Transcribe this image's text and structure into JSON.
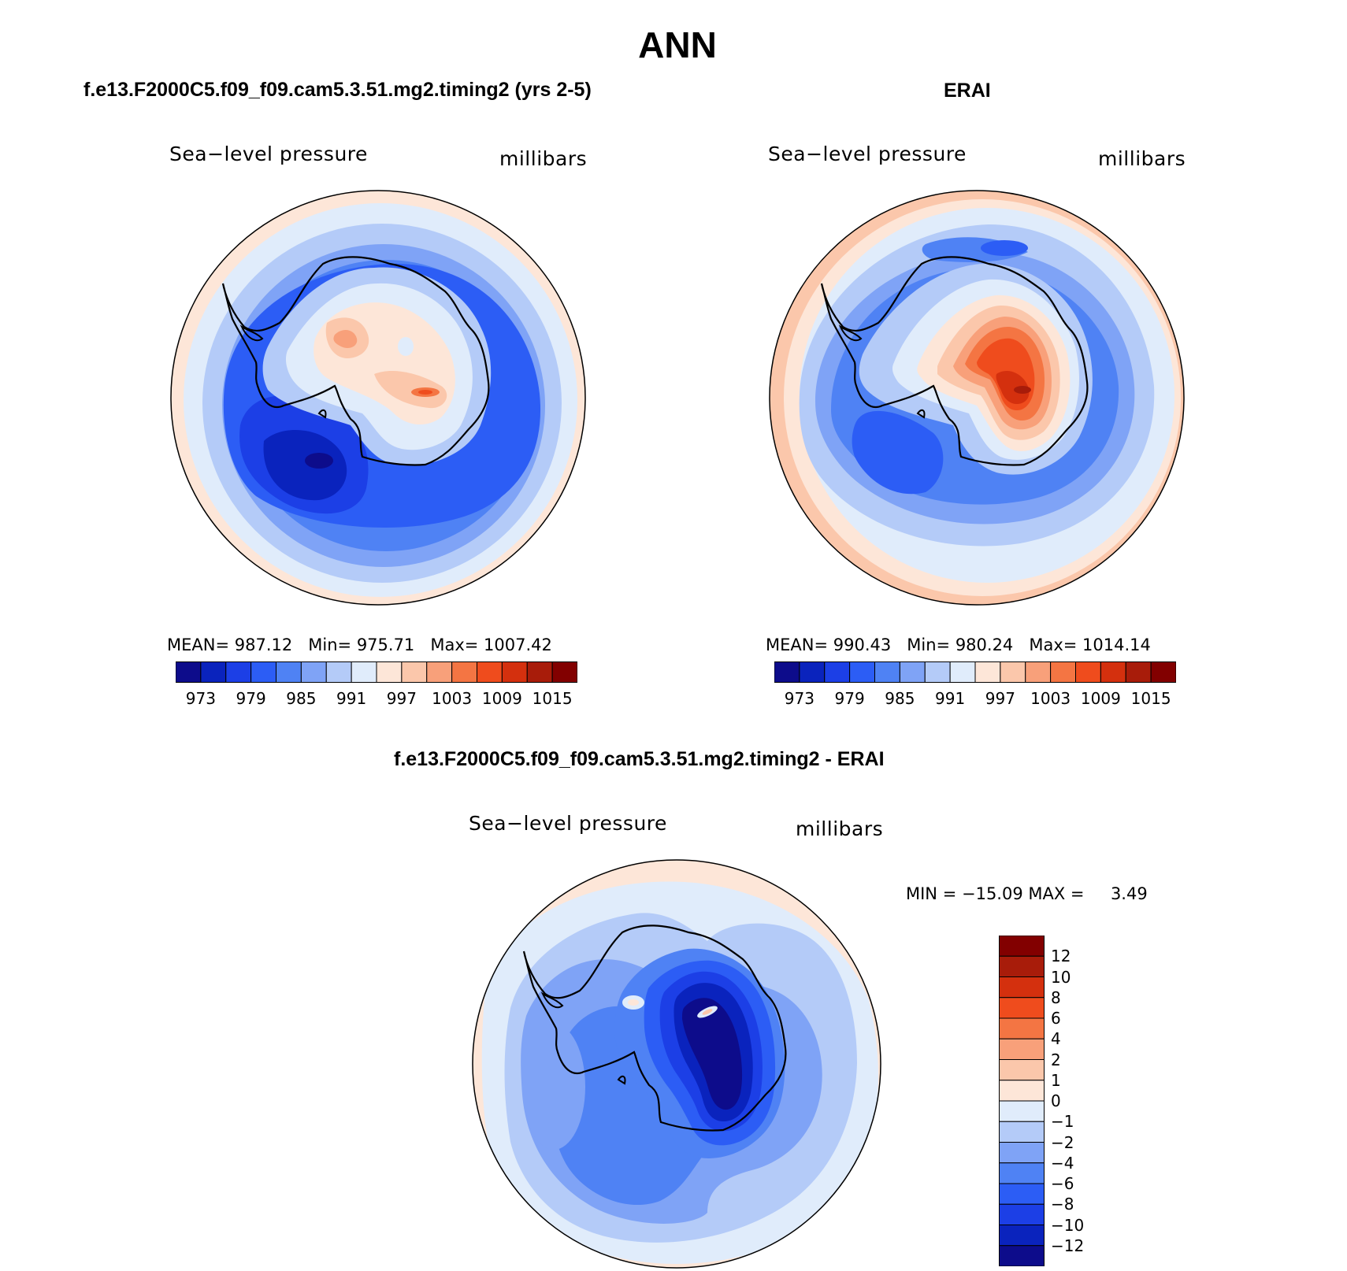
{
  "title": "ANN",
  "panels": [
    {
      "case_title": "f.e13.F2000C5.f09_f09.cam5.3.51.mg2.timing2 (yrs 2-5)",
      "variable": "Sea−level pressure",
      "units": "millibars",
      "stats": {
        "mean_label": "MEAN=",
        "mean": "987.12",
        "min_label": "Min=",
        "min": "975.71",
        "max_label": "Max=",
        "max": "1007.42"
      }
    },
    {
      "case_title": "ERAI",
      "variable": "Sea−level pressure",
      "units": "millibars",
      "stats": {
        "mean_label": "MEAN=",
        "mean": "990.43",
        "min_label": "Min=",
        "min": "980.24",
        "max_label": "Max=",
        "max": "1014.14"
      }
    }
  ],
  "diff_panel": {
    "case_title": "f.e13.F2000C5.f09_f09.cam5.3.51.mg2.timing2 - ERAI",
    "variable": "Sea−level pressure",
    "units": "millibars",
    "min_label": "MIN =",
    "min": "−15.09",
    "max_label": "MAX =",
    "max": "3.49"
  },
  "colorbar_abs": {
    "ticks": [
      "973",
      "979",
      "985",
      "991",
      "997",
      "1003",
      "1009",
      "1015"
    ],
    "colors": [
      "#0d0c8b",
      "#0a23bd",
      "#1c3fe6",
      "#2c5df5",
      "#4f82f4",
      "#7fa3f6",
      "#b4cbf8",
      "#e0ecfb",
      "#fde6d8",
      "#fbc7ab",
      "#f8a07a",
      "#f47543",
      "#ef4c1d",
      "#d4300e",
      "#a81c0a",
      "#820000"
    ]
  },
  "colorbar_diff": {
    "ticks": [
      "12",
      "10",
      "8",
      "6",
      "4",
      "2",
      "1",
      "0",
      "−1",
      "−2",
      "−4",
      "−6",
      "−8",
      "−10",
      "−12"
    ],
    "colors": [
      "#820000",
      "#a81c0a",
      "#d4300e",
      "#ef4c1d",
      "#f47543",
      "#f8a07a",
      "#fbc7ab",
      "#fde6d8",
      "#e0ecfb",
      "#b4cbf8",
      "#7fa3f6",
      "#4f82f4",
      "#2c5df5",
      "#1c3fe6",
      "#0a23bd",
      "#0d0c8b"
    ]
  },
  "chart_data": [
    {
      "type": "heatmap",
      "title": "f.e13.F2000C5.f09_f09.cam5.3.51.mg2.timing2 (yrs 2-5)",
      "variable": "Sea-level pressure",
      "units": "millibars",
      "projection": "south polar stereographic",
      "contour_levels": [
        973,
        976,
        979,
        982,
        985,
        988,
        991,
        994,
        997,
        1000,
        1003,
        1006,
        1009,
        1012,
        1015
      ],
      "mean": 987.12,
      "min": 975.71,
      "max": 1007.42
    },
    {
      "type": "heatmap",
      "title": "ERAI",
      "variable": "Sea-level pressure",
      "units": "millibars",
      "projection": "south polar stereographic",
      "contour_levels": [
        973,
        976,
        979,
        982,
        985,
        988,
        991,
        994,
        997,
        1000,
        1003,
        1006,
        1009,
        1012,
        1015
      ],
      "mean": 990.43,
      "min": 980.24,
      "max": 1014.14
    },
    {
      "type": "heatmap",
      "title": "f.e13.F2000C5.f09_f09.cam5.3.51.mg2.timing2 - ERAI",
      "variable": "Sea-level pressure",
      "units": "millibars",
      "projection": "south polar stereographic",
      "contour_levels": [
        -12,
        -10,
        -8,
        -6,
        -4,
        -2,
        -1,
        0,
        1,
        2,
        4,
        6,
        8,
        10,
        12
      ],
      "min": -15.09,
      "max": 3.49
    }
  ]
}
